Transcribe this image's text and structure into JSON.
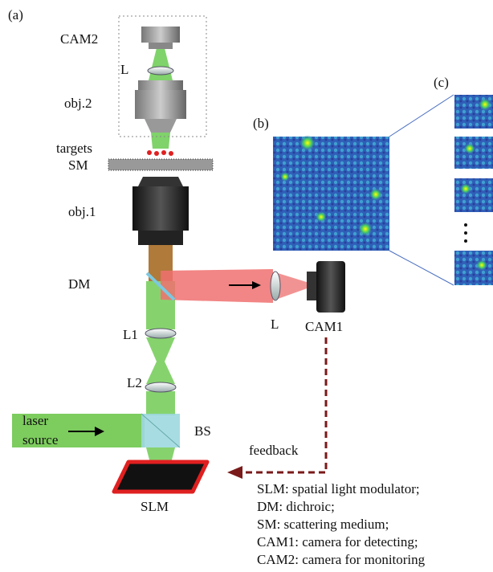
{
  "panels": {
    "a": "(a)",
    "b": "(b)",
    "c": "(c)"
  },
  "labels": {
    "cam2": "CAM2",
    "lens_top": "L",
    "obj2": "obj.2",
    "targets": "targets",
    "sm": "SM",
    "obj1": "obj.1",
    "dm": "DM",
    "lens_cam1": "L",
    "cam1": "CAM1",
    "l1": "L1",
    "l2": "L2",
    "laser": [
      "laser",
      "source"
    ],
    "bs": "BS",
    "feedback": "feedback",
    "slm": "SLM"
  },
  "legend": [
    "SLM: spatial light modulator;",
    "DM: dichroic;",
    "SM: scattering medium;",
    "CAM1: camera for detecting;",
    "CAM2: camera for monitoring"
  ]
}
